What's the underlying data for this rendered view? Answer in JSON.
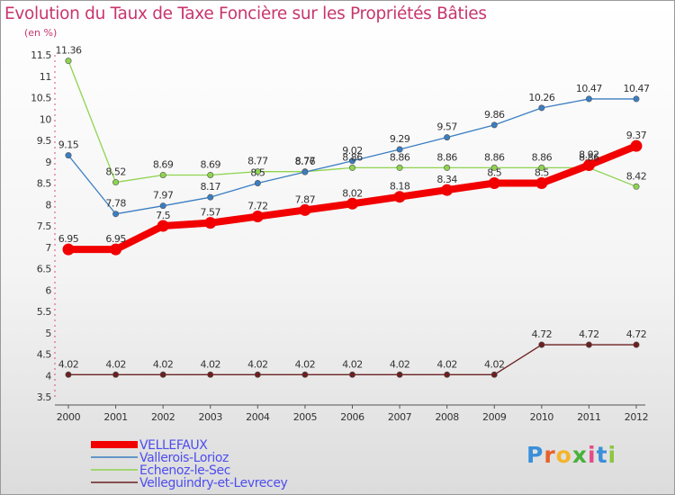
{
  "title": "Evolution du Taux de Taxe Foncière sur les Propriétés Bâties",
  "unit": "(en %)",
  "logo": {
    "letters": [
      "P",
      "r",
      "o",
      "x",
      "i",
      "t",
      "i"
    ],
    "colors": [
      "#3a8fd9",
      "#e6612a",
      "#f4b52c",
      "#4ab03a",
      "#e64b8a",
      "#3a8fd9",
      "#8cc63f"
    ]
  },
  "chart_data": {
    "type": "line",
    "title": "Evolution du Taux de Taxe Foncière sur les Propriétés Bâties",
    "ylabel": "(en %)",
    "xlabel": "",
    "x": [
      "2000",
      "2001",
      "2002",
      "2003",
      "2004",
      "2005",
      "2006",
      "2007",
      "2008",
      "2009",
      "2010",
      "2011",
      "2012"
    ],
    "ylim": [
      3.5,
      11.5
    ],
    "yticks": [
      "3.5",
      "4",
      "4.5",
      "5",
      "5.5",
      "6",
      "6.5",
      "7",
      "7.5",
      "8",
      "8.5",
      "9",
      "9.5",
      "10",
      "10.5",
      "11",
      "11.5"
    ],
    "grid": false,
    "legend_position": "bottom-left",
    "series": [
      {
        "name": "Velleguindry-et-Levrecey",
        "color": "#6b2020",
        "values": [
          4.02,
          4.02,
          4.02,
          4.02,
          4.02,
          4.02,
          4.02,
          4.02,
          4.02,
          4.02,
          4.72,
          4.72,
          4.72
        ],
        "labels": [
          "4.02",
          "4.02",
          "4.02",
          "4.02",
          "4.02",
          "4.02",
          "4.02",
          "4.02",
          "4.02",
          "4.02",
          "4.72",
          "4.72",
          "4.72"
        ]
      },
      {
        "name": "Echenoz-le-Sec",
        "color": "#8ed44f",
        "values": [
          11.36,
          8.52,
          8.69,
          8.69,
          8.77,
          8.77,
          8.86,
          8.86,
          8.86,
          8.86,
          8.86,
          8.86,
          8.42
        ],
        "labels": [
          "11.36",
          "8.52",
          "8.69",
          "8.69",
          "8.77",
          "8.77",
          "8.86",
          "8.86",
          "8.86",
          "8.86",
          "8.86",
          "8.86",
          "8.42"
        ]
      },
      {
        "name": "Vallerois-Lorioz",
        "color": "#3a7ec2",
        "values": [
          9.15,
          7.78,
          7.97,
          8.17,
          8.5,
          8.76,
          9.02,
          9.29,
          9.57,
          9.86,
          10.26,
          10.47,
          10.47
        ],
        "labels": [
          "9.15",
          "7.78",
          "7.97",
          "8.17",
          "8.5",
          "8.76",
          "9.02",
          "9.29",
          "9.57",
          "9.86",
          "10.26",
          "10.47",
          "10.47"
        ]
      },
      {
        "name": "VELLEFAUX",
        "color": "#f20000",
        "values": [
          6.95,
          6.95,
          7.5,
          7.57,
          7.72,
          7.87,
          8.02,
          8.18,
          8.34,
          8.5,
          8.5,
          8.92,
          9.37
        ],
        "labels": [
          "6.95",
          "6.95",
          "7.5",
          "7.57",
          "7.72",
          "7.87",
          "8.02",
          "8.18",
          "8.34",
          "8.5",
          "8.5",
          "8.92",
          "9.37"
        ]
      }
    ],
    "legend": [
      "VELLEFAUX",
      "Vallerois-Lorioz",
      "Echenoz-le-Sec",
      "Velleguindry-et-Levrecey"
    ]
  }
}
